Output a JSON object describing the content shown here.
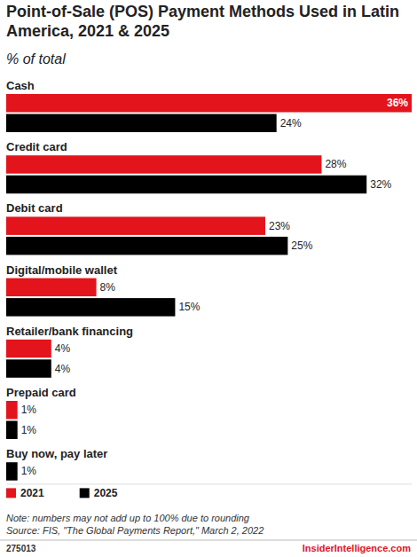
{
  "chart_data": {
    "type": "bar",
    "orientation": "horizontal",
    "title": "Point-of-Sale (POS) Payment Methods Used in Latin America, 2021 & 2025",
    "subtitle": "% of total",
    "categories": [
      "Cash",
      "Credit card",
      "Debit card",
      "Digital/mobile wallet",
      "Retailer/bank financing",
      "Prepaid card",
      "Buy now, pay later"
    ],
    "series": [
      {
        "name": "2021",
        "color": "#e3141c",
        "values": [
          36,
          28,
          23,
          8,
          4,
          1,
          null
        ],
        "value_labels": [
          "36%",
          "28%",
          "23%",
          "8%",
          "4%",
          "1%",
          null
        ]
      },
      {
        "name": "2025",
        "color": "#000000",
        "values": [
          24,
          32,
          25,
          15,
          4,
          1,
          1
        ],
        "value_labels": [
          "24%",
          "32%",
          "25%",
          "15%",
          "4%",
          "1%",
          "1%"
        ]
      }
    ],
    "xlim": [
      0,
      36
    ],
    "data_labels": true,
    "tick_labels": false,
    "grid": false,
    "legend": "bottom-left",
    "note": "Note: numbers may not add up to 100% due to rounding",
    "source": "Source: FIS, \"The Global Payments Report,\" March 2, 2022",
    "chart_id": "275013",
    "brand": "InsiderIntelligence.com"
  }
}
